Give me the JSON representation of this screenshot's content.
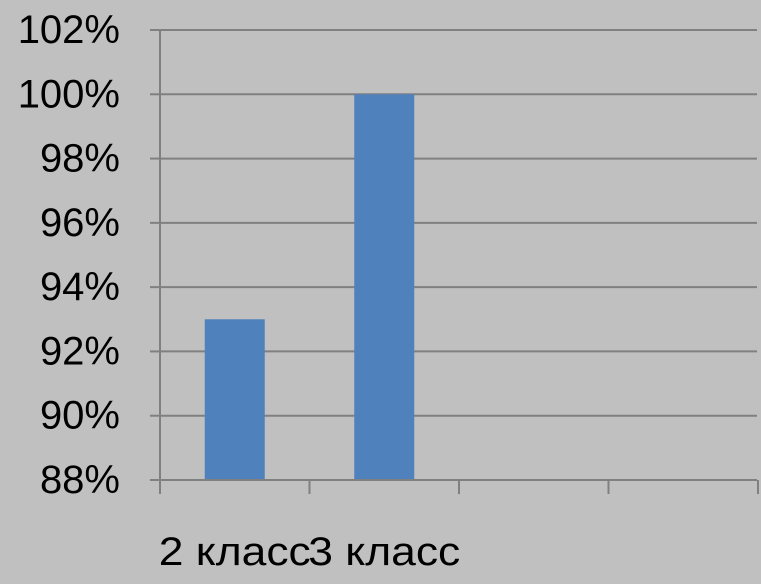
{
  "chart_data": {
    "type": "bar",
    "categories": [
      "2 класс",
      "3 класс",
      "",
      "",
      ""
    ],
    "values": [
      93,
      100,
      null,
      null,
      null
    ],
    "value_unit": "%",
    "ylim": [
      88,
      102
    ],
    "ytick_step": 2,
    "yticks": [
      "102%",
      "100%",
      "98%",
      "96%",
      "94%",
      "92%",
      "90%",
      "88%"
    ],
    "title": "",
    "xlabel": "",
    "ylabel": "",
    "grid": true,
    "legend": "none",
    "colors": {
      "bar": "#4f81bd",
      "background": "#c0c0c0",
      "gridline": "#808080",
      "axis": "#808080",
      "text": "#000000"
    }
  }
}
